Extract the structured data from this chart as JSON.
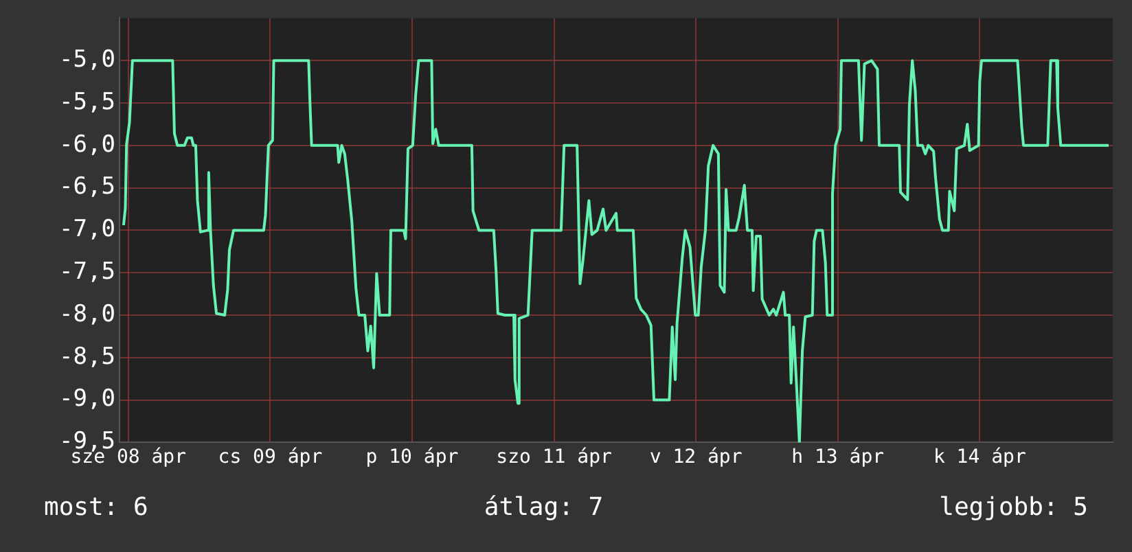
{
  "chart_data": {
    "type": "line",
    "annotations": [
      "most: 6",
      "átlag: 7",
      "legjobb: 5"
    ],
    "xlim": [
      "--04-08T10:30",
      "--04-15T10:30"
    ],
    "xticks": [
      {
        "value": "--04-08T12:00",
        "label": "sze 08 ápr"
      },
      {
        "value": "--04-09T12:00",
        "label": "cs 09 ápr"
      },
      {
        "value": "--04-10T12:00",
        "label": "p 10 ápr"
      },
      {
        "value": "--04-11T12:00",
        "label": "szo 11 ápr"
      },
      {
        "value": "--04-12T12:00",
        "label": "v 12 ápr"
      },
      {
        "value": "--04-13T12:00",
        "label": "h 13 ápr"
      },
      {
        "value": "--04-14T12:00",
        "label": "k 14 ápr"
      }
    ],
    "ylim": [
      -9.5,
      -4.5
    ],
    "yticks": [
      {
        "value": -9.5,
        "label": "-9,5"
      },
      {
        "value": -9,
        "label": "-9,0"
      },
      {
        "value": -8.5,
        "label": "-8,5"
      },
      {
        "value": -8,
        "label": "-8,0"
      },
      {
        "value": -7.5,
        "label": "-7,5"
      },
      {
        "value": -7,
        "label": "-7,0"
      },
      {
        "value": -6.5,
        "label": "-6,5"
      },
      {
        "value": -6,
        "label": "-6,0"
      },
      {
        "value": -5.5,
        "label": "-5,5"
      },
      {
        "value": -5,
        "label": "-5,0"
      }
    ],
    "grid": true,
    "series": [
      {
        "color": "#66f2b2",
        "x": [
          "--04-08T11:12",
          "--04-08T11:30",
          "--04-08T11:42",
          "--04-08T12:12",
          "--04-08T12:42",
          "--04-08T19:30",
          "--04-08T19:48",
          "--04-08T20:18",
          "--04-08T21:30",
          "--04-08T22:00",
          "--04-08T22:42",
          "--04-08T23:00",
          "--04-08T23:24",
          "--04-08T23:42",
          "--04-09T00:12",
          "--04-09T01:24",
          "--04-09T01:36",
          "--04-09T01:54",
          "--04-09T02:24",
          "--04-09T02:54",
          "--04-09T04:18",
          "--04-09T04:48",
          "--04-09T05:06",
          "--04-09T05:48",
          "--04-09T10:54",
          "--04-09T11:12",
          "--04-09T11:42",
          "--04-09T12:24",
          "--04-09T12:36",
          "--04-09T18:30",
          "--04-09T18:42",
          "--04-09T19:00",
          "--04-09T23:24",
          "--04-09T23:36",
          "--04-10T00:06",
          "--04-10T00:36",
          "--04-10T01:06",
          "--04-10T01:48",
          "--04-10T02:30",
          "--04-10T03:00",
          "--04-10T04:00",
          "--04-10T04:30",
          "--04-10T05:00",
          "--04-10T05:30",
          "--04-10T06:00",
          "--04-10T06:30",
          "--04-10T08:12",
          "--04-10T08:24",
          "--04-10T10:36",
          "--04-10T10:54",
          "--04-10T11:18",
          "--04-10T12:06",
          "--04-10T12:36",
          "--04-10T13:06",
          "--04-10T15:18",
          "--04-10T15:30",
          "--04-10T16:00",
          "--04-10T16:30",
          "--04-10T22:06",
          "--04-10T22:18",
          "--04-10T23:18",
          "--04-11T01:48",
          "--04-11T02:12",
          "--04-11T02:30",
          "--04-11T03:42",
          "--04-11T05:12",
          "--04-11T05:24",
          "--04-11T05:54",
          "--04-11T06:06",
          "--04-11T07:36",
          "--04-11T08:18",
          "--04-11T13:12",
          "--04-11T13:42",
          "--04-11T15:54",
          "--04-11T16:24",
          "--04-11T16:54",
          "--04-11T17:24",
          "--04-11T17:54",
          "--04-11T18:24",
          "--04-11T19:18",
          "--04-11T20:18",
          "--04-11T20:48",
          "--04-11T22:30",
          "--04-11T22:42",
          "--04-12T01:24",
          "--04-12T01:54",
          "--04-12T02:42",
          "--04-12T03:36",
          "--04-12T04:24",
          "--04-12T04:54",
          "--04-12T07:30",
          "--04-12T08:00",
          "--04-12T08:30",
          "--04-12T08:48",
          "--04-12T09:42",
          "--04-12T10:12",
          "--04-12T11:00",
          "--04-12T11:24",
          "--04-12T11:54",
          "--04-12T12:24",
          "--04-12T12:54",
          "--04-12T13:36",
          "--04-12T14:06",
          "--04-12T14:54",
          "--04-12T15:48",
          "--04-12T16:06",
          "--04-12T16:48",
          "--04-12T17:06",
          "--04-12T17:30",
          "--04-12T18:48",
          "--04-12T19:18",
          "--04-12T20:12",
          "--04-12T20:42",
          "--04-12T21:30",
          "--04-12T21:42",
          "--04-12T22:12",
          "--04-12T22:54",
          "--04-12T23:12",
          "--04-13T00:24",
          "--04-13T01:06",
          "--04-13T01:36",
          "--04-13T02:48",
          "--04-13T03:06",
          "--04-13T03:48",
          "--04-13T04:06",
          "--04-13T04:30",
          "--04-13T05:00",
          "--04-13T05:30",
          "--04-13T06:00",
          "--04-13T06:30",
          "--04-13T07:42",
          "--04-13T08:00",
          "--04-13T08:24",
          "--04-13T09:24",
          "--04-13T09:54",
          "--04-13T10:12",
          "--04-13T10:54",
          "--04-13T11:06",
          "--04-13T11:36",
          "--04-13T12:24",
          "--04-13T12:36",
          "--04-13T15:30",
          "--04-13T16:00",
          "--04-13T16:30",
          "--04-13T17:42",
          "--04-13T18:42",
          "--04-13T19:00",
          "--04-13T22:24",
          "--04-13T22:36",
          "--04-13T23:48",
          "--04-14T00:06",
          "--04-14T00:36",
          "--04-14T01:06",
          "--04-14T01:30",
          "--04-14T02:18",
          "--04-14T02:48",
          "--04-14T03:18",
          "--04-14T04:12",
          "--04-14T04:30",
          "--04-14T05:12",
          "--04-14T05:42",
          "--04-14T06:42",
          "--04-14T06:54",
          "--04-14T07:42",
          "--04-14T08:06",
          "--04-14T09:24",
          "--04-14T09:54",
          "--04-14T10:18",
          "--04-14T11:48",
          "--04-14T12:00",
          "--04-14T12:18",
          "--04-14T18:24",
          "--04-14T19:06",
          "--04-14T19:24",
          "--04-14T23:30",
          "--04-15T00:00",
          "--04-15T01:00",
          "--04-15T01:12",
          "--04-15T01:42",
          "--04-15T09:48"
        ],
        "values": [
          -6.94,
          -6.74,
          -5.99,
          -5.73,
          -5.0,
          -5.0,
          -5.86,
          -6.0,
          -6.0,
          -5.91,
          -5.91,
          -6.0,
          -6.0,
          -6.65,
          -7.02,
          -7.0,
          -6.32,
          -7.0,
          -7.65,
          -7.98,
          -8.0,
          -7.7,
          -7.23,
          -7.0,
          -7.0,
          -6.82,
          -6.0,
          -5.94,
          -5.0,
          -5.0,
          -5.45,
          -6.0,
          -6.0,
          -6.2,
          -6.0,
          -6.1,
          -6.4,
          -6.89,
          -7.68,
          -8.0,
          -8.0,
          -8.42,
          -8.13,
          -8.62,
          -7.51,
          -8.0,
          -8.0,
          -7.0,
          -7.0,
          -7.1,
          -6.04,
          -6.0,
          -5.41,
          -5.0,
          -5.0,
          -5.98,
          -5.81,
          -6.0,
          -6.0,
          -6.77,
          -7.0,
          -7.0,
          -7.48,
          -7.98,
          -8.0,
          -8.0,
          -8.76,
          -9.04,
          -8.04,
          -8.0,
          -7.0,
          -7.0,
          -6.0,
          -6.0,
          -7.63,
          -7.35,
          -7.0,
          -6.65,
          -7.05,
          -7.0,
          -6.75,
          -7.0,
          -6.8,
          -7.0,
          -7.0,
          -7.8,
          -7.93,
          -8.0,
          -8.12,
          -9.0,
          -9.0,
          -8.14,
          -8.76,
          -8.1,
          -7.32,
          -7.0,
          -7.2,
          -7.56,
          -8.0,
          -8.0,
          -7.43,
          -7.0,
          -6.24,
          -6.0,
          -6.1,
          -7.65,
          -7.73,
          -6.52,
          -7.0,
          -7.0,
          -6.85,
          -6.47,
          -7.0,
          -7.0,
          -7.71,
          -7.07,
          -7.07,
          -7.81,
          -8.0,
          -7.93,
          -8.0,
          -7.73,
          -8.0,
          -8.0,
          -8.8,
          -8.14,
          -8.8,
          -9.5,
          -8.42,
          -8.02,
          -8.0,
          -7.13,
          -7.0,
          -7.0,
          -7.38,
          -8.0,
          -8.0,
          -6.57,
          -6.0,
          -5.81,
          -5.0,
          -5.0,
          -5.94,
          -5.04,
          -5.0,
          -5.1,
          -6.0,
          -6.0,
          -6.55,
          -6.64,
          -5.53,
          -5.0,
          -5.36,
          -6.0,
          -6.0,
          -6.1,
          -6.0,
          -6.07,
          -6.36,
          -6.87,
          -7.0,
          -7.0,
          -6.54,
          -6.77,
          -6.04,
          -6.0,
          -5.75,
          -6.06,
          -6.0,
          -5.25,
          -5.0,
          -5.0,
          -5.78,
          -6.0,
          -6.0,
          -5.0,
          -5.0,
          -5.56,
          -6.0,
          -6.0
        ]
      }
    ]
  }
}
